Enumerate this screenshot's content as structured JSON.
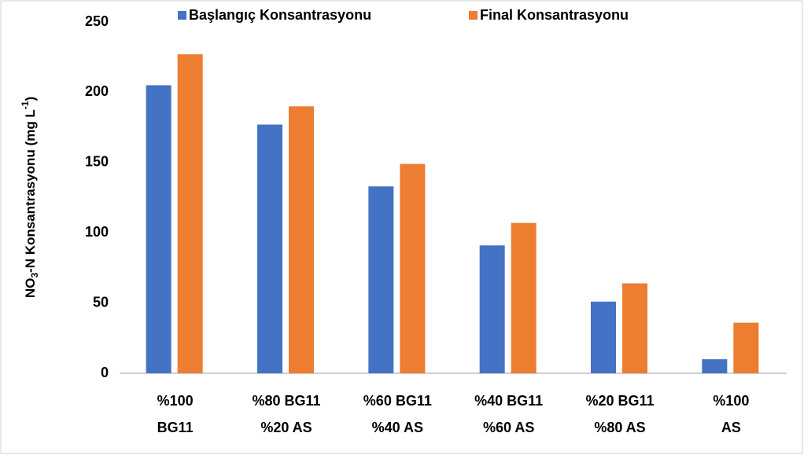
{
  "chart_data": {
    "type": "bar",
    "ylabel": [
      "NO",
      "3",
      "-N Konsantrasyonu  (mg L",
      "-1",
      ")"
    ],
    "categories": [
      [
        "%100",
        "BG11"
      ],
      [
        "%80 BG11",
        "%20  AS"
      ],
      [
        "%60 BG11",
        "%40 AS"
      ],
      [
        "%40 BG11",
        "%60 AS"
      ],
      [
        "%20 BG11",
        "%80 AS"
      ],
      [
        "%100",
        "AS"
      ]
    ],
    "series": [
      {
        "name": "Başlangıç Konsantrasyonu",
        "color": "#4472c4",
        "values": [
          205,
          177,
          133,
          91,
          51,
          10
        ]
      },
      {
        "name": "Final Konsantrasyonu",
        "color": "#ed7d31",
        "values": [
          227,
          190,
          149,
          107,
          64,
          36
        ]
      }
    ],
    "ylim": [
      0,
      250
    ],
    "yticks": [
      0,
      50,
      100,
      150,
      200,
      250
    ],
    "grid": false,
    "legend": "top"
  }
}
